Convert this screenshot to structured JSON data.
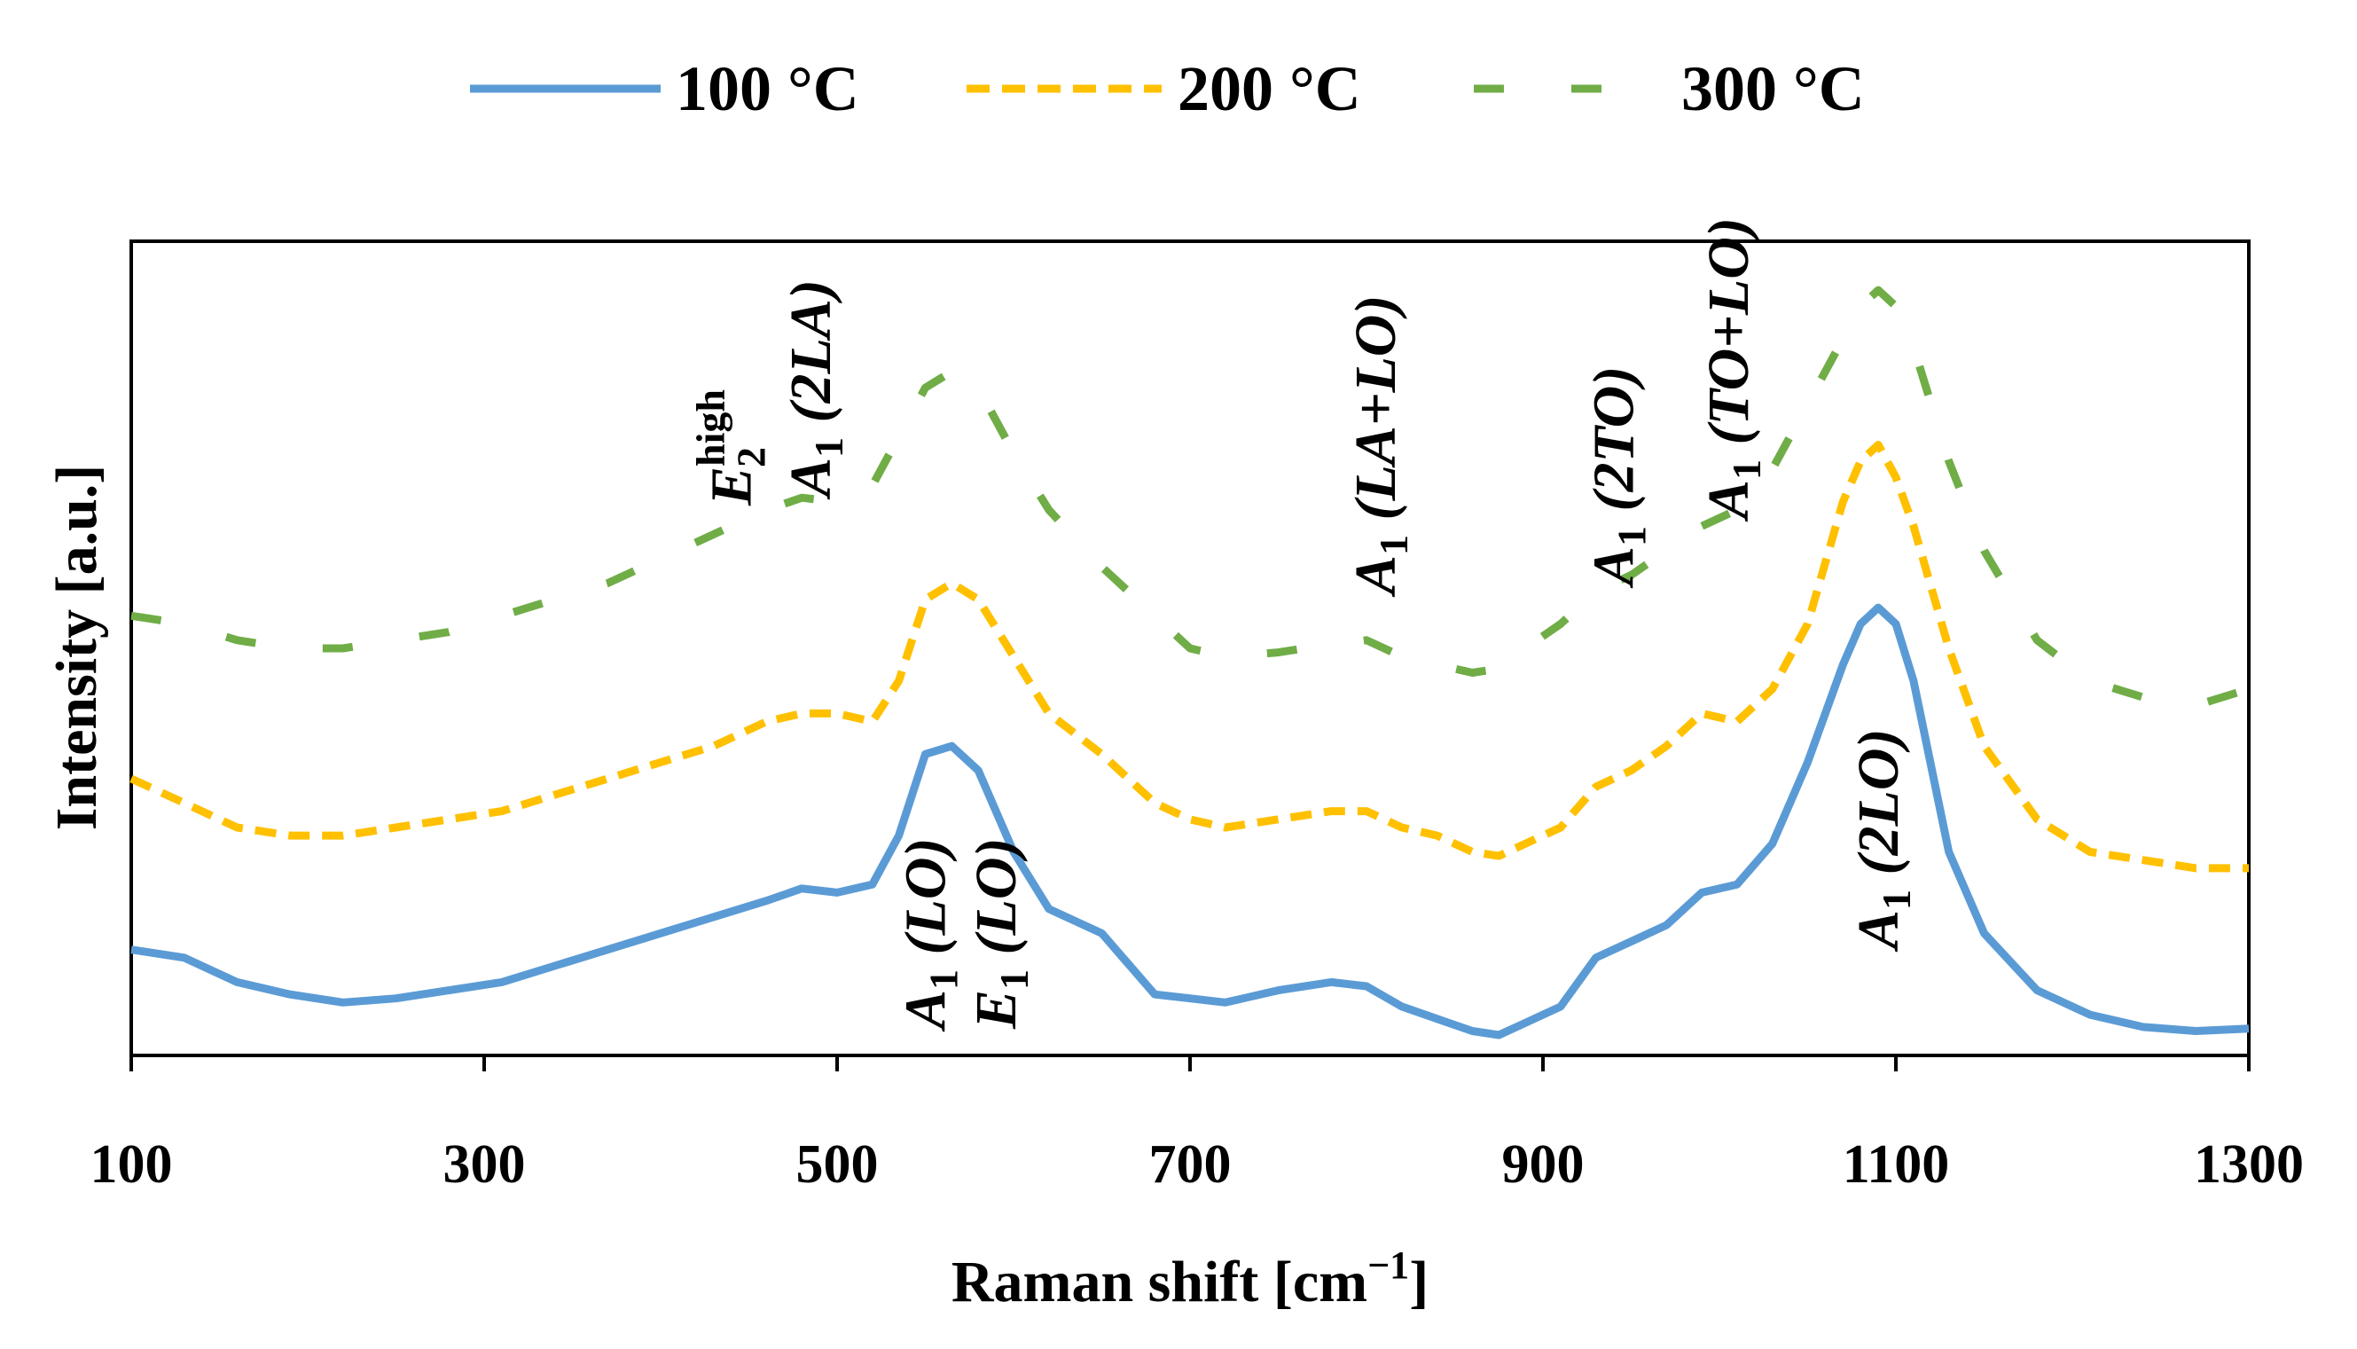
{
  "chart_data": {
    "type": "line",
    "title": "",
    "xlabel": "Raman shift [cm",
    "xlabel_sup": "−1",
    "xlabel_end": "]",
    "ylabel": "Intensity [a.u.]",
    "xlim": [
      100,
      1300
    ],
    "ylim": [
      0,
      100
    ],
    "xticks": [
      "100",
      "300",
      "500",
      "700",
      "900",
      "1100",
      "1300"
    ],
    "yticks": [],
    "legend_position": "top",
    "series": [
      {
        "name": "100 °C",
        "color": "#5b9bd5",
        "dash": "solid",
        "x": [
          100,
          130,
          160,
          190,
          220,
          250,
          280,
          310,
          340,
          370,
          400,
          430,
          460,
          480,
          500,
          520,
          535,
          550,
          565,
          580,
          600,
          620,
          650,
          680,
          700,
          720,
          750,
          780,
          800,
          820,
          840,
          860,
          875,
          890,
          910,
          930,
          950,
          970,
          990,
          1010,
          1030,
          1050,
          1070,
          1080,
          1090,
          1100,
          1110,
          1130,
          1150,
          1180,
          1210,
          1240,
          1270,
          1300
        ],
        "y": [
          13,
          12,
          9,
          7.5,
          6.5,
          7,
          8,
          9,
          11,
          13,
          15,
          17,
          19,
          20.5,
          20,
          21,
          27,
          37,
          38,
          35,
          25,
          18,
          15,
          7.5,
          7,
          6.5,
          8,
          9,
          8.5,
          6,
          4.5,
          3,
          2.5,
          4,
          6,
          12,
          14,
          16,
          20,
          21,
          26,
          36,
          48,
          53,
          55,
          53,
          46,
          25,
          15,
          8,
          5,
          3.5,
          3,
          3.3
        ]
      },
      {
        "name": "200 °C",
        "color": "#ffc000",
        "dash": "dash",
        "x": [
          100,
          130,
          160,
          190,
          220,
          250,
          280,
          310,
          340,
          370,
          400,
          430,
          460,
          480,
          500,
          520,
          535,
          550,
          565,
          580,
          600,
          620,
          650,
          680,
          700,
          720,
          750,
          780,
          800,
          820,
          840,
          860,
          875,
          890,
          910,
          930,
          950,
          970,
          990,
          1010,
          1030,
          1050,
          1070,
          1080,
          1090,
          1100,
          1110,
          1130,
          1150,
          1180,
          1210,
          1240,
          1270,
          1300
        ],
        "y": [
          34,
          31,
          28,
          27,
          27,
          28,
          29,
          30,
          32,
          34,
          36,
          38,
          41,
          42,
          42,
          41,
          46,
          56,
          58,
          56,
          49,
          42,
          37,
          31,
          29,
          28,
          29,
          30,
          30,
          28,
          27,
          25,
          24.5,
          26,
          28,
          33,
          35,
          38,
          42,
          41,
          45,
          53,
          68,
          73,
          75,
          71,
          65,
          50,
          38,
          29,
          25,
          24,
          23,
          23
        ]
      },
      {
        "name": "300 °C",
        "color": "#70ad47",
        "dash": "longdash",
        "x": [
          100,
          130,
          160,
          190,
          220,
          250,
          280,
          310,
          340,
          370,
          400,
          430,
          460,
          480,
          500,
          520,
          535,
          550,
          565,
          580,
          600,
          620,
          650,
          680,
          700,
          720,
          750,
          780,
          800,
          820,
          840,
          860,
          875,
          890,
          910,
          930,
          950,
          970,
          990,
          1010,
          1030,
          1050,
          1070,
          1080,
          1090,
          1100,
          1110,
          1130,
          1150,
          1180,
          1210,
          1240,
          1270,
          1300
        ],
        "y": [
          54,
          53,
          51,
          50,
          50,
          51,
          52,
          54,
          56,
          58,
          61,
          64,
          67,
          68.5,
          68,
          70,
          76,
          82,
          84,
          82,
          74,
          67,
          60,
          54,
          50,
          49,
          49.5,
          50.5,
          51,
          49,
          48,
          47,
          47.5,
          50,
          53,
          57,
          59,
          62,
          65,
          67,
          72,
          80,
          88,
          92,
          94,
          92,
          87,
          73,
          62,
          51,
          46,
          44,
          43,
          45
        ]
      }
    ],
    "annotations": [
      {
        "name": "e2high-label",
        "main": "E",
        "sub": "2",
        "sup": "high",
        "rest": "",
        "x": 440
      },
      {
        "name": "a1-2la-label",
        "main": "A",
        "sub": "1",
        "rest": " (2LA)",
        "x": 485
      },
      {
        "name": "a1-la-lo-label",
        "main": "A",
        "sub": "1",
        "rest": " (LA+LO)",
        "x": 805
      },
      {
        "name": "a1-2to-label",
        "main": "A",
        "sub": "1",
        "rest": " (2TO)",
        "x": 940
      },
      {
        "name": "a1-to-lo-label",
        "main": "A",
        "sub": "1",
        "rest": " (TO+LO)",
        "x": 1005
      },
      {
        "name": "a1-lo-label",
        "main": "A",
        "sub": "1",
        "rest": " (LO)",
        "x": 550
      },
      {
        "name": "e1-lo-label",
        "main": "E",
        "sub": "1",
        "rest": " (LO)",
        "x": 590
      },
      {
        "name": "a1-2lo-label",
        "main": "A",
        "sub": "1",
        "rest": " (2LO)",
        "x": 1090
      }
    ]
  }
}
